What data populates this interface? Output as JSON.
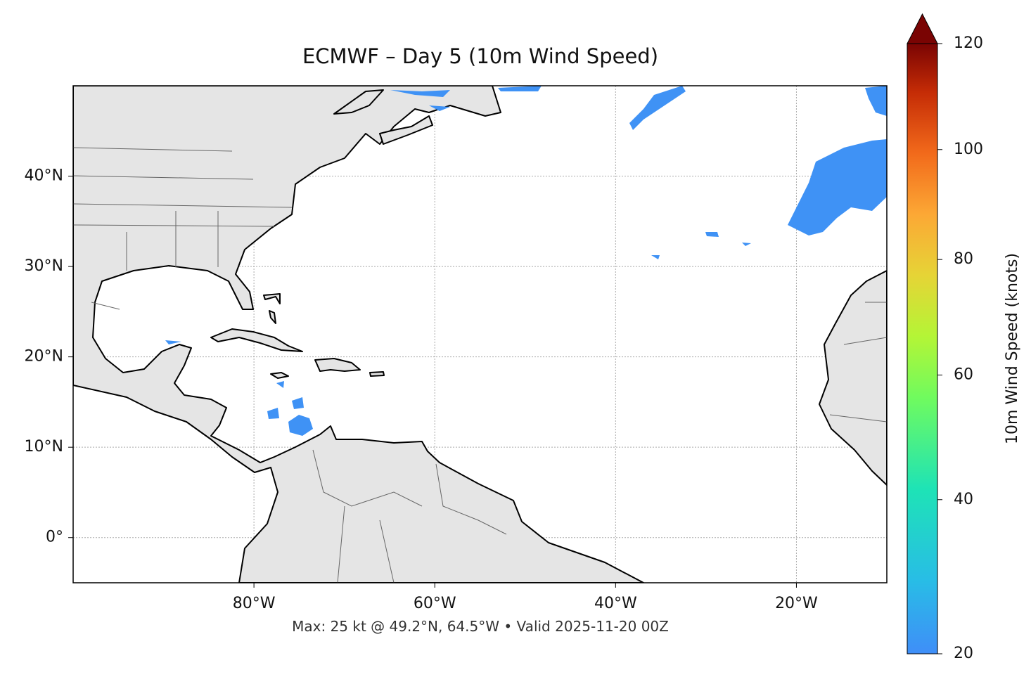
{
  "title": "ECMWF – Day 5 (10m Wind Speed)",
  "footer": "Max: 25 kt @ 49.2°N, 64.5°W • Valid 2025-11-20 00Z",
  "map": {
    "xlim": [
      -100,
      -10
    ],
    "ylim": [
      -5,
      50
    ],
    "xticks": [
      {
        "value": -80,
        "label": "80°W"
      },
      {
        "value": -60,
        "label": "60°W"
      },
      {
        "value": -40,
        "label": "40°W"
      },
      {
        "value": -20,
        "label": "20°W"
      }
    ],
    "yticks": [
      {
        "value": 0,
        "label": "0°"
      },
      {
        "value": 10,
        "label": "10°N"
      },
      {
        "value": 20,
        "label": "20°N"
      },
      {
        "value": 30,
        "label": "30°N"
      },
      {
        "value": 40,
        "label": "40°N"
      }
    ],
    "grid": true
  },
  "colorbar": {
    "label": "10m Wind Speed (knots)",
    "lim": [
      20,
      120
    ],
    "ticks": [
      20,
      40,
      60,
      80,
      100,
      120
    ]
  }
}
